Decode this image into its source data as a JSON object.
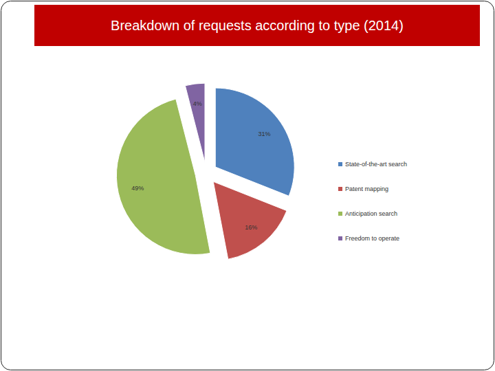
{
  "chart_data": {
    "type": "pie",
    "title": "Breakdown of requests according to type (2014)",
    "categories": [
      "State-of-the-art search",
      "Patent mapping",
      "Anticipation search",
      "Freedom to operate"
    ],
    "values": [
      31,
      16,
      49,
      4
    ],
    "value_labels": [
      "31%",
      "16%",
      "49%",
      "4%"
    ],
    "colors": [
      "#4f81bd",
      "#c0504d",
      "#9bbb59",
      "#8064a2"
    ],
    "data_labels": true,
    "legend": "right"
  }
}
